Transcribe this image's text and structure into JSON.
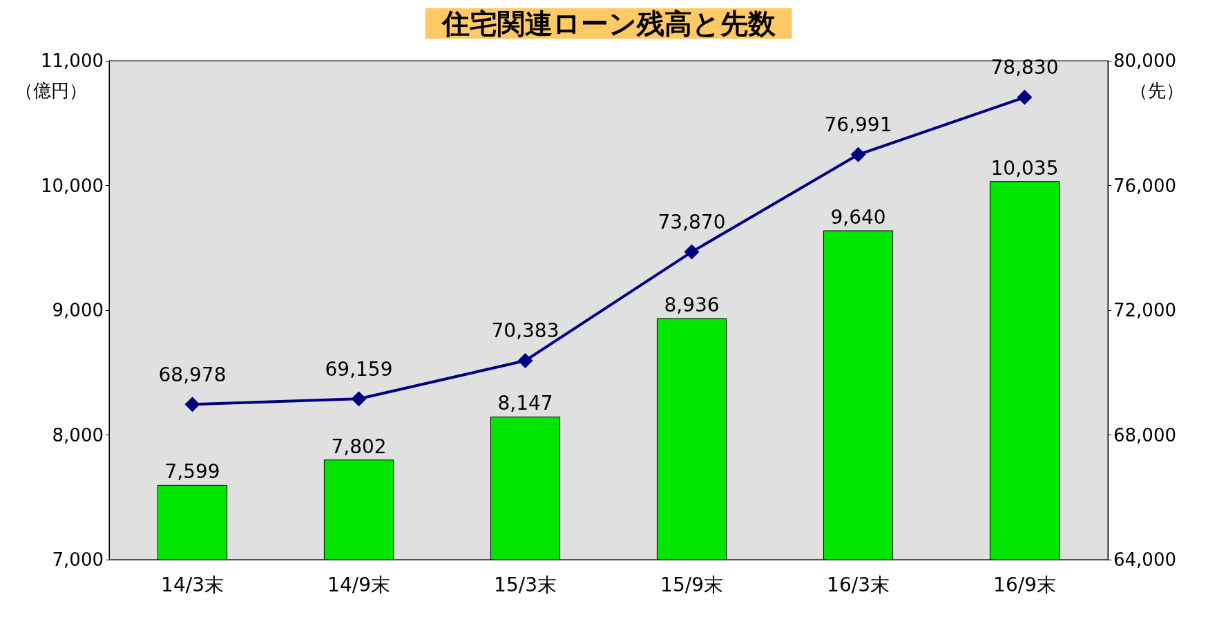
{
  "chart_data": {
    "type": "bar",
    "title": "住宅関連ローン残高と先数",
    "ylabel": "（億円）",
    "y2label": "（先）",
    "categories": [
      "14/3末",
      "14/9末",
      "15/3末",
      "15/9末",
      "16/3末",
      "16/9末"
    ],
    "series": [
      {
        "color": "#00e600",
        "values": [
          7599,
          7802,
          8147,
          8936,
          9640,
          10035
        ],
        "value_labels": [
          "7,599",
          "7,802",
          "8,147",
          "8,936",
          "9,640",
          "10,035"
        ]
      },
      {
        "type": "line",
        "axis": "y2",
        "color": "#000080",
        "marker": "diamond",
        "values": [
          68978,
          69159,
          70383,
          73870,
          76991,
          78830
        ],
        "value_labels": [
          "68,978",
          "69,159",
          "70,383",
          "73,870",
          "76,991",
          "78,830"
        ]
      }
    ],
    "ylim": [
      7000,
      11000
    ],
    "yticks": [
      {
        "value": 7000,
        "label": "7,000"
      },
      {
        "value": 8000,
        "label": "8,000"
      },
      {
        "value": 9000,
        "label": "9,000"
      },
      {
        "value": 10000,
        "label": "10,000"
      },
      {
        "value": 11000,
        "label": "11,000"
      }
    ],
    "y2lim": [
      64000,
      80000
    ],
    "y2ticks": [
      {
        "value": 64000,
        "label": "64,000"
      },
      {
        "value": 68000,
        "label": "68,000"
      },
      {
        "value": 72000,
        "label": "72,000"
      },
      {
        "value": 76000,
        "label": "76,000"
      },
      {
        "value": 80000,
        "label": "80,000"
      }
    ],
    "grid": false
  }
}
